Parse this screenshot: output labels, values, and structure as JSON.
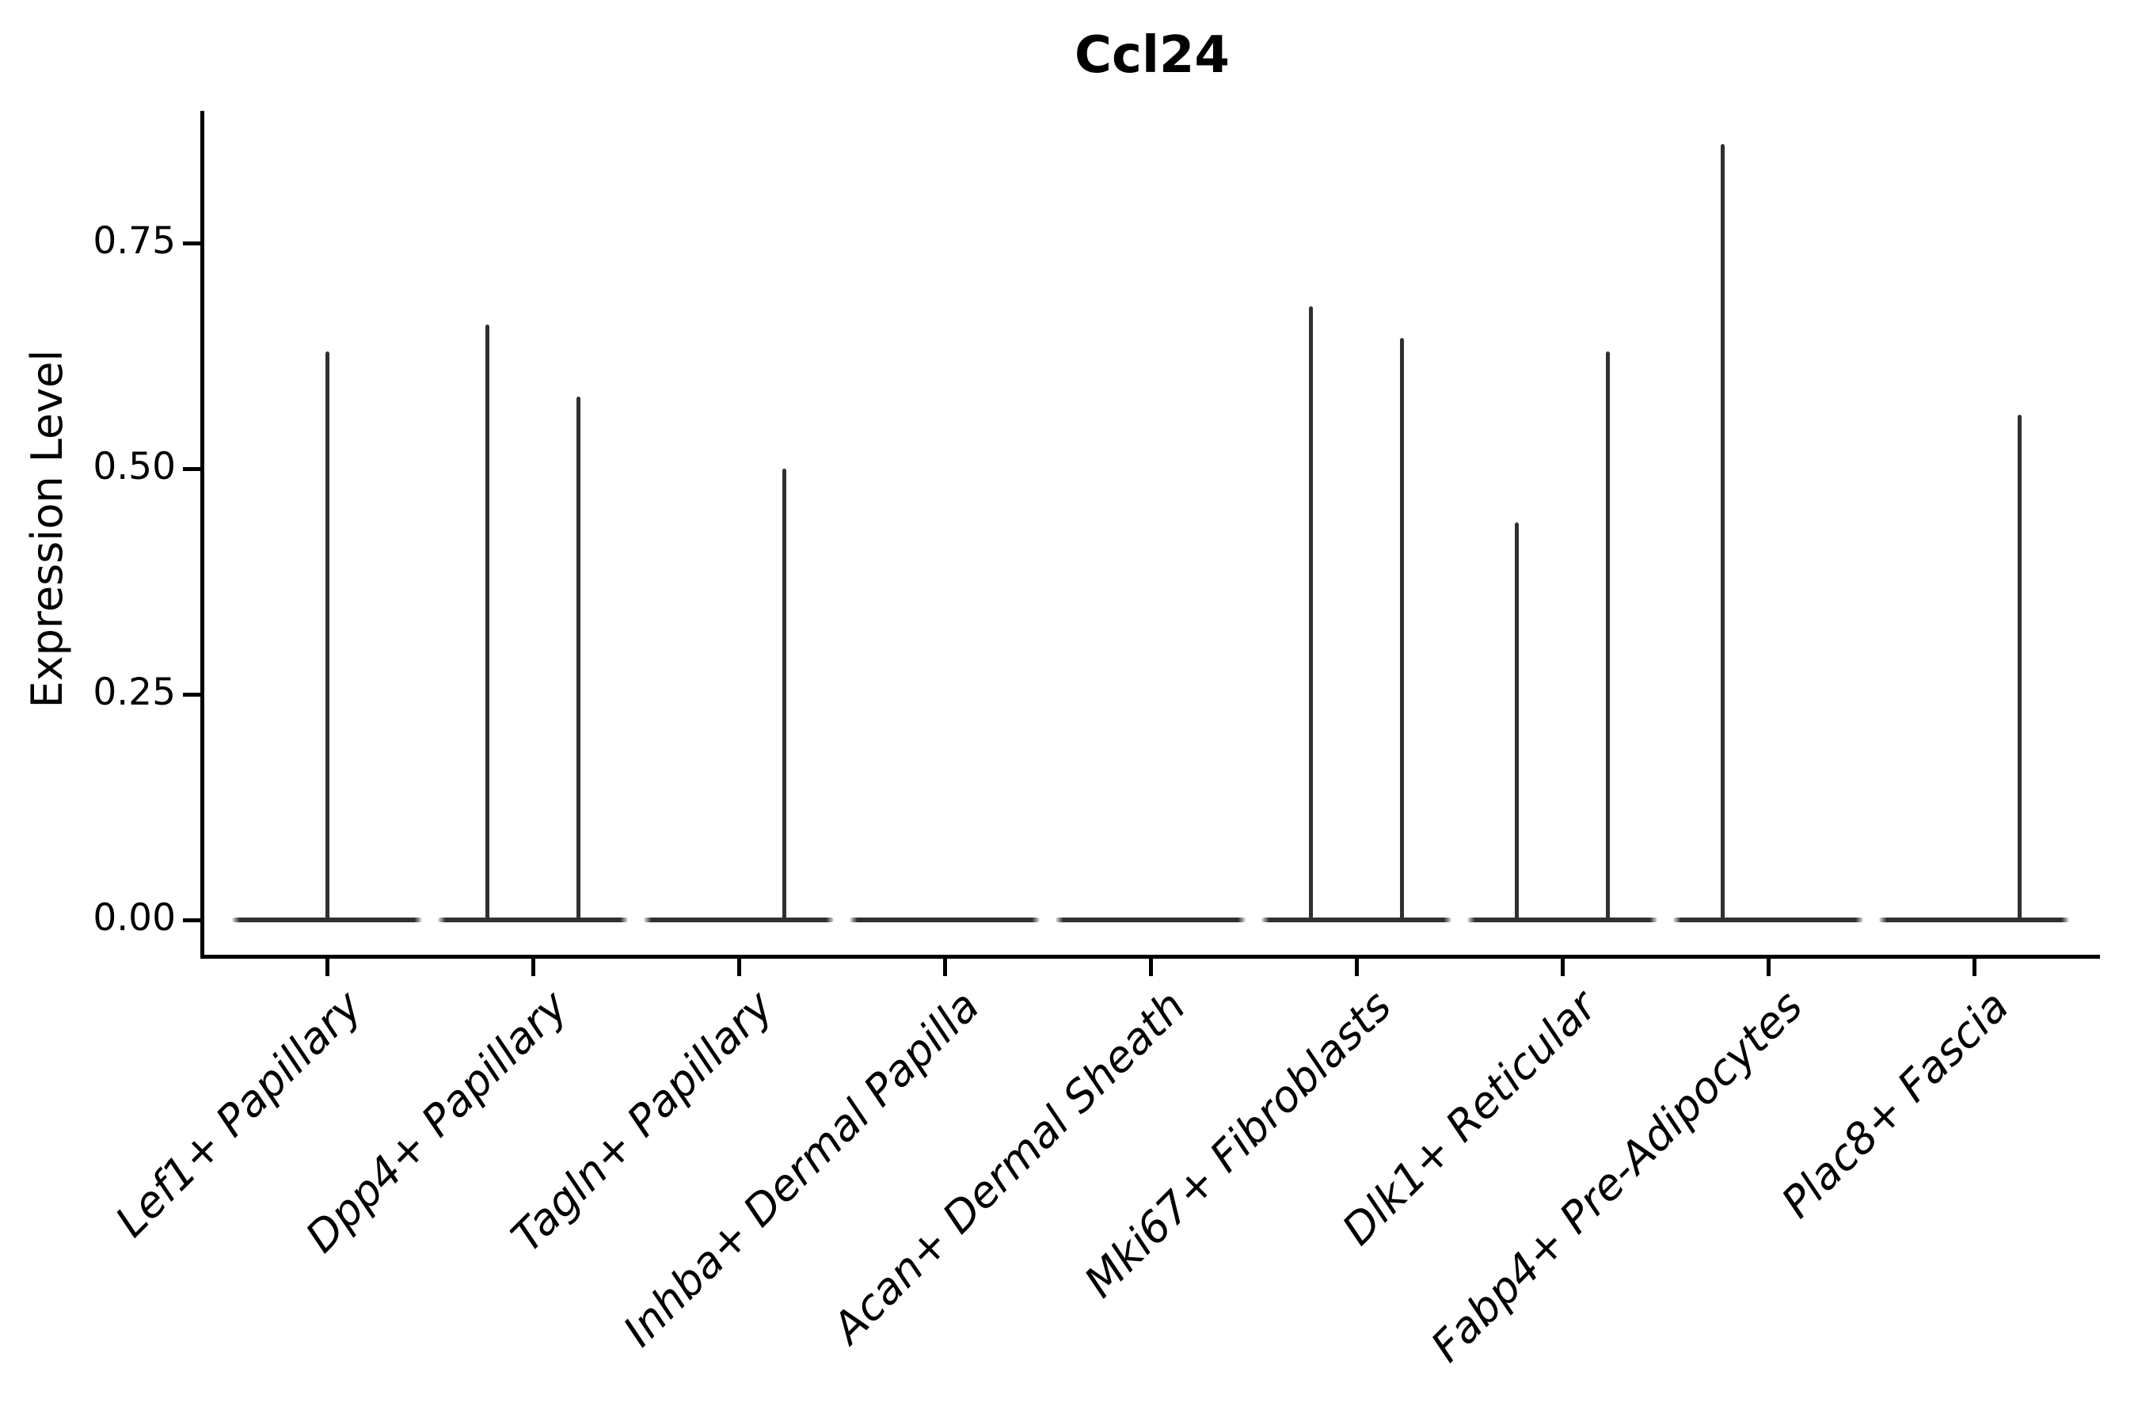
{
  "title": "Ccl24",
  "y_axis": {
    "label": "Expression Level",
    "tick_labels": [
      "0.00",
      "0.25",
      "0.50",
      "0.75"
    ]
  },
  "colors": {
    "axis_ink": "#000000",
    "violin_stroke": "#303030"
  },
  "chart_data": {
    "type": "violin",
    "title": "Ccl24",
    "xlabel": "",
    "ylabel": "Expression Level",
    "ylim": [
      0,
      0.9
    ],
    "grid": false,
    "legend": false,
    "y_ticks": [
      {
        "value": 0.0,
        "label": "0.00"
      },
      {
        "value": 0.25,
        "label": "0.25"
      },
      {
        "value": 0.5,
        "label": "0.50"
      },
      {
        "value": 0.75,
        "label": "0.75"
      }
    ],
    "categories": [
      "Lef1+ Papillary",
      "Dpp4+ Papillary",
      "Tagln+ Papillary",
      "Inhba+ Dermal Papilla",
      "Acan+ Dermal Sheath",
      "Mki67+ Fibroblasts",
      "Dlk1+ Reticular",
      "Fabp4+ Pre-Adipocytes",
      "Plac8+ Fascia"
    ],
    "violins": [
      {
        "category": "Lef1+ Papillary",
        "base_value": 0,
        "spikes": [
          {
            "value": 0.63,
            "offset": 0
          }
        ]
      },
      {
        "category": "Dpp4+ Papillary",
        "base_value": 0,
        "spikes": [
          {
            "value": 0.66,
            "offset": -0.22
          },
          {
            "value": 0.58,
            "offset": 0.22
          }
        ]
      },
      {
        "category": "Tagln+ Papillary",
        "base_value": 0,
        "spikes": [
          {
            "value": 0.5,
            "offset": 0.22
          }
        ]
      },
      {
        "category": "Inhba+ Dermal Papilla",
        "base_value": 0,
        "spikes": []
      },
      {
        "category": "Acan+ Dermal Sheath",
        "base_value": 0,
        "spikes": []
      },
      {
        "category": "Mki67+ Fibroblasts",
        "base_value": 0,
        "spikes": [
          {
            "value": 0.68,
            "offset": -0.22
          },
          {
            "value": 0.645,
            "offset": 0.22
          }
        ]
      },
      {
        "category": "Dlk1+ Reticular",
        "base_value": 0,
        "spikes": [
          {
            "value": 0.44,
            "offset": -0.22
          },
          {
            "value": 0.63,
            "offset": 0.22
          }
        ]
      },
      {
        "category": "Fabp4+ Pre-Adipocytes",
        "base_value": 0,
        "spikes": [
          {
            "value": 0.86,
            "offset": -0.22
          }
        ]
      },
      {
        "category": "Plac8+ Fascia",
        "base_value": 0,
        "spikes": [
          {
            "value": 0.56,
            "offset": 0.22
          }
        ]
      }
    ]
  }
}
